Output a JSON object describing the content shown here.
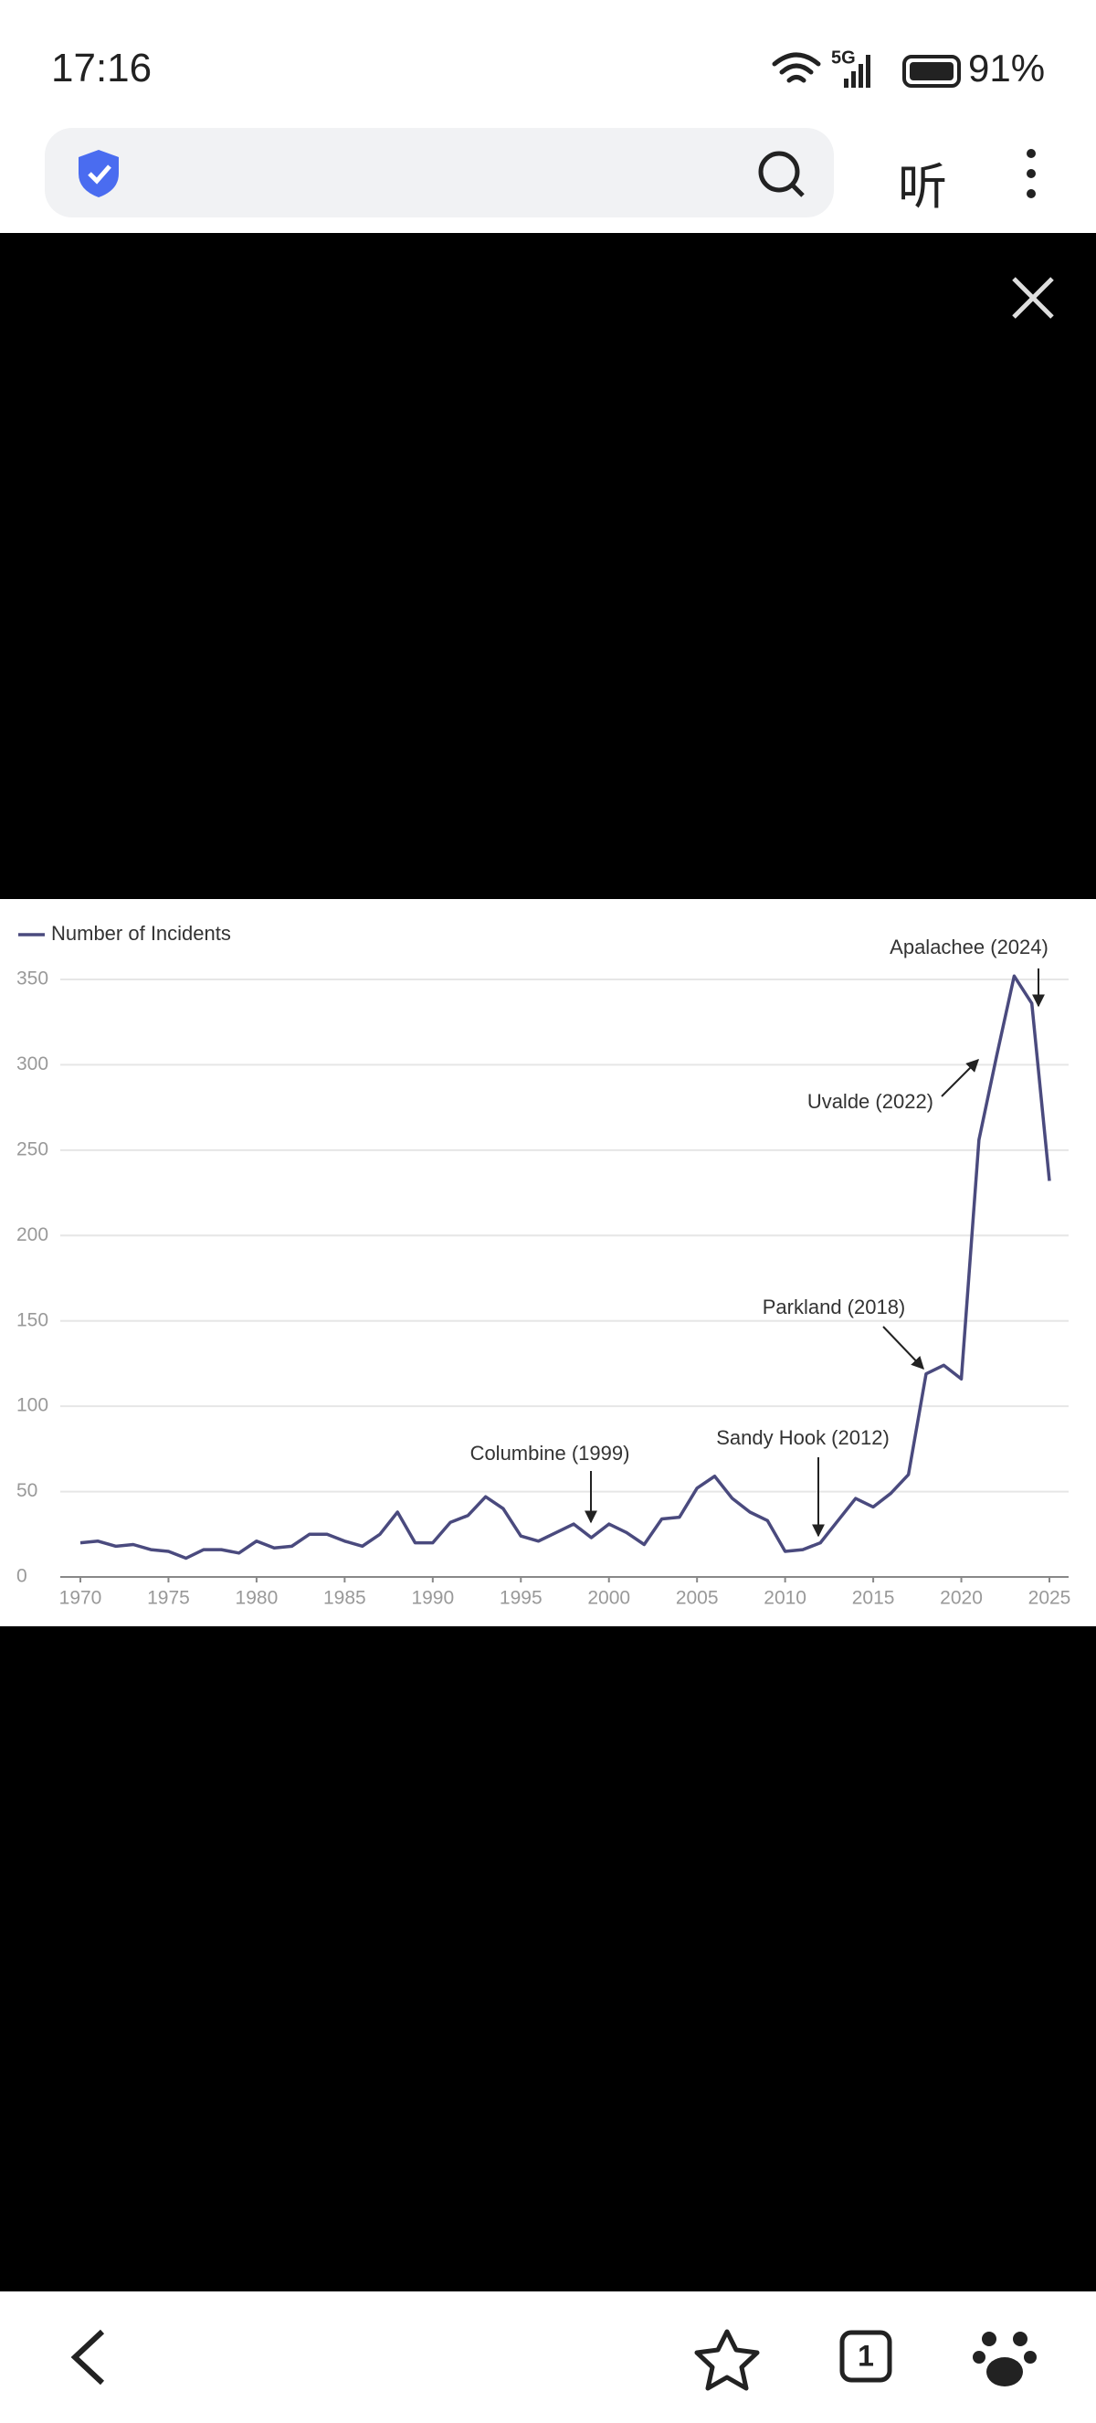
{
  "status_bar": {
    "time": "17:16",
    "network": "5G",
    "battery": "91%"
  },
  "toolbar": {
    "listen": "听"
  },
  "bottom_nav": {
    "tab_count": "1"
  },
  "chart_data": {
    "type": "line",
    "x": [
      1970,
      1971,
      1972,
      1973,
      1974,
      1975,
      1976,
      1977,
      1978,
      1979,
      1980,
      1981,
      1982,
      1983,
      1984,
      1985,
      1986,
      1987,
      1988,
      1989,
      1990,
      1991,
      1992,
      1993,
      1994,
      1995,
      1996,
      1997,
      1998,
      1999,
      2000,
      2001,
      2002,
      2003,
      2004,
      2005,
      2006,
      2007,
      2008,
      2009,
      2010,
      2011,
      2012,
      2013,
      2014,
      2015,
      2016,
      2017,
      2018,
      2019,
      2020,
      2021,
      2022,
      2023,
      2024,
      2025
    ],
    "series": [
      {
        "name": "Number of Incidents",
        "color": "#4a4a7e",
        "values": [
          20,
          21,
          18,
          19,
          16,
          15,
          11,
          16,
          16,
          14,
          21,
          17,
          18,
          25,
          25,
          21,
          18,
          25,
          38,
          20,
          20,
          32,
          36,
          47,
          40,
          24,
          21,
          26,
          31,
          23,
          31,
          26,
          19,
          34,
          35,
          52,
          59,
          46,
          38,
          33,
          15,
          16,
          20,
          33,
          46,
          41,
          49,
          60,
          119,
          124,
          116,
          256,
          305,
          352,
          336,
          232
        ]
      }
    ],
    "xlim": [
      1970,
      2025
    ],
    "xticks": [
      1970,
      1975,
      1980,
      1985,
      1990,
      1995,
      2000,
      2005,
      2010,
      2015,
      2020,
      2025
    ],
    "ylim": [
      0,
      350
    ],
    "yticks": [
      0,
      50,
      100,
      150,
      200,
      250,
      300,
      350
    ],
    "grid": true,
    "legend": "top-left",
    "annotations": [
      {
        "text": "Columbine (1999)",
        "x": 1999
      },
      {
        "text": "Sandy Hook (2012)",
        "x": 2012
      },
      {
        "text": "Parkland (2018)",
        "x": 2018
      },
      {
        "text": "Uvalde (2022)",
        "x": 2022
      },
      {
        "text": "Apalachee (2024)",
        "x": 2024
      }
    ]
  }
}
